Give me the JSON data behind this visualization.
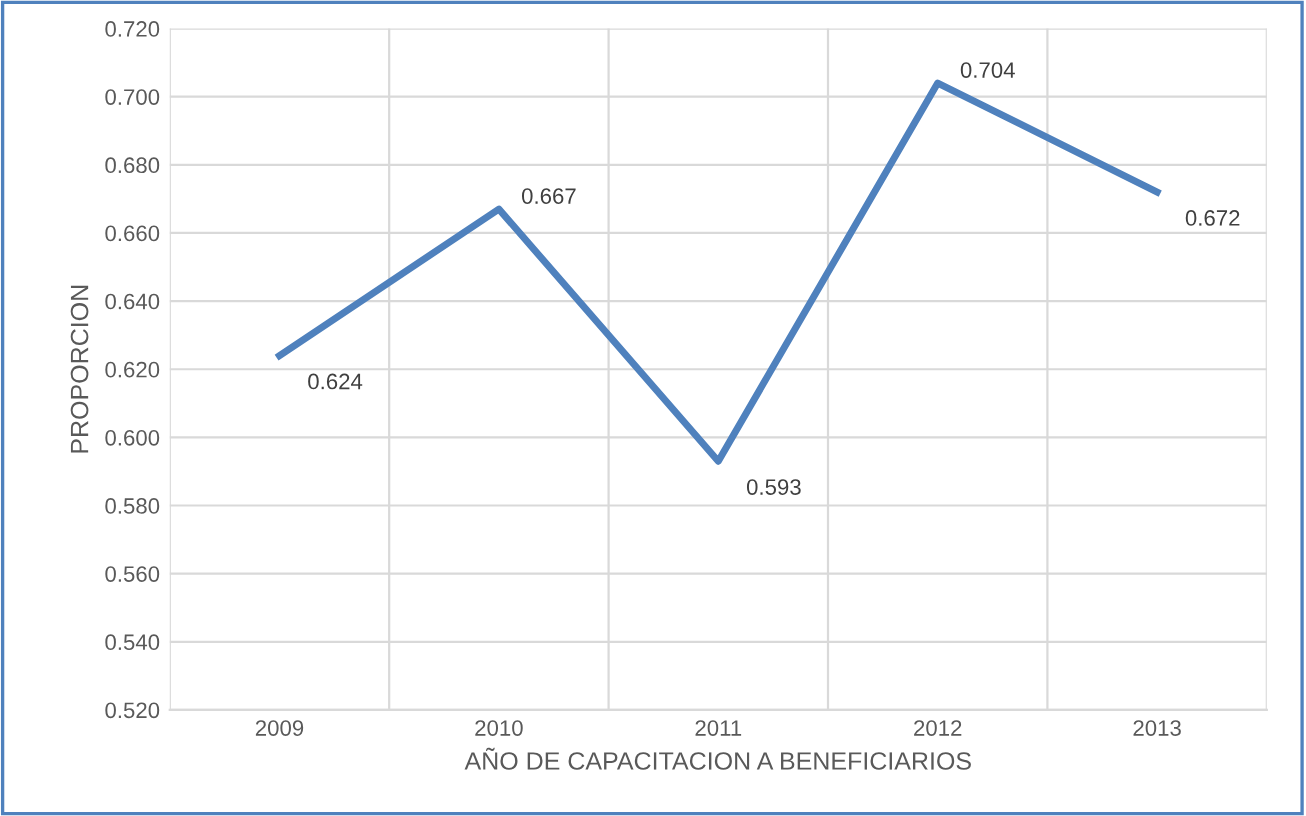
{
  "chart_data": {
    "type": "line",
    "categories": [
      "2009",
      "2010",
      "2011",
      "2012",
      "2013"
    ],
    "series": [
      {
        "color": "#4f81bd",
        "values": [
          0.624,
          0.667,
          0.593,
          0.704,
          0.672
        ]
      }
    ],
    "value_labels": [
      "0.624",
      "0.667",
      "0.593",
      "0.704",
      "0.672"
    ],
    "xlabel": "AÑO DE CAPACITACION A BENEFICIARIOS",
    "ylabel": "PROPORCION",
    "ylim": [
      0.52,
      0.72
    ],
    "yticks": [
      {
        "value": 0.52,
        "label": "0.520"
      },
      {
        "value": 0.54,
        "label": "0.540"
      },
      {
        "value": 0.56,
        "label": "0.560"
      },
      {
        "value": 0.58,
        "label": "0.580"
      },
      {
        "value": 0.6,
        "label": "0.600"
      },
      {
        "value": 0.62,
        "label": "0.620"
      },
      {
        "value": 0.64,
        "label": "0.640"
      },
      {
        "value": 0.66,
        "label": "0.660"
      },
      {
        "value": 0.68,
        "label": "0.680"
      },
      {
        "value": 0.7,
        "label": "0.700"
      },
      {
        "value": 0.72,
        "label": "0.720"
      }
    ],
    "grid": true,
    "marker": "none",
    "line_style": "solid"
  }
}
